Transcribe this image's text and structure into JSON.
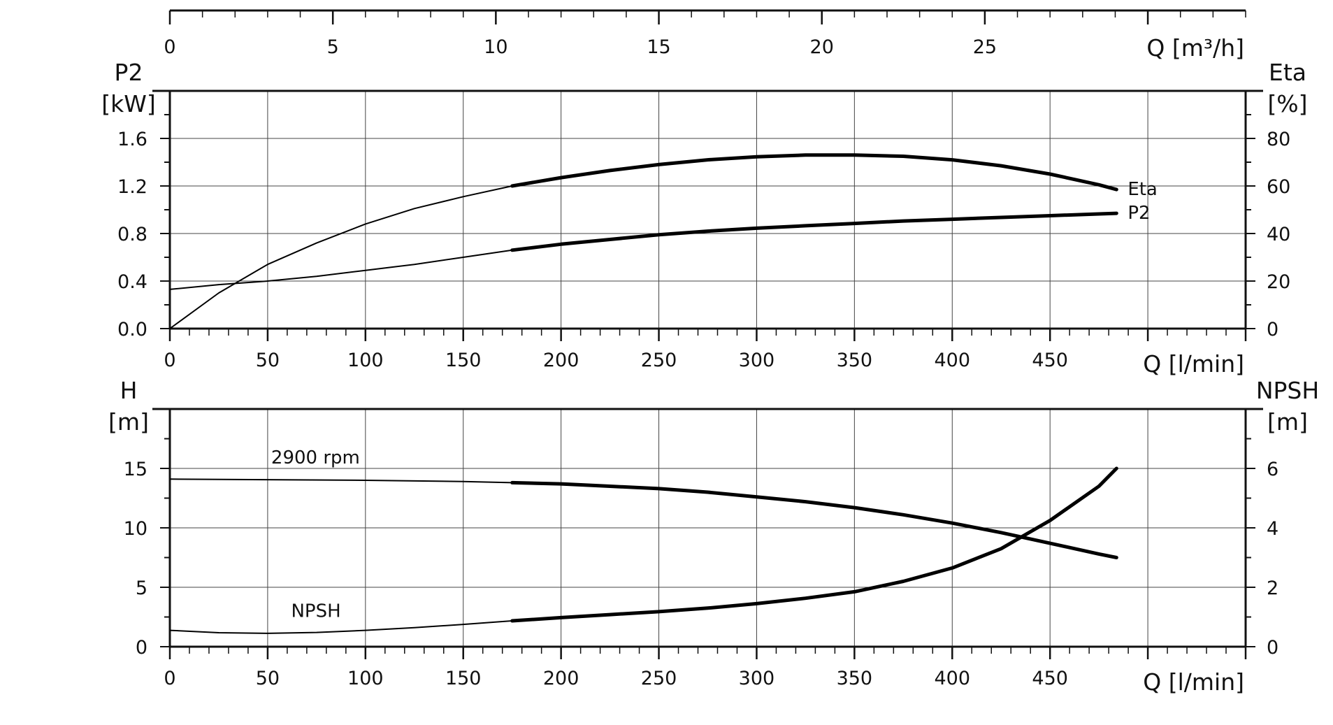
{
  "chart_data": [
    {
      "type": "line",
      "panel": "power-efficiency",
      "x_unit": "l/min",
      "x_ticks": [
        0,
        50,
        100,
        150,
        200,
        250,
        300,
        350,
        400,
        450
      ],
      "x_label": "Q [l/min]",
      "xlim": [
        0,
        550
      ],
      "top_axis": {
        "label": "Q [m³/h]",
        "ticks": [
          0,
          5,
          10,
          15,
          20,
          25
        ],
        "xlim": [
          0,
          33
        ]
      },
      "y_left": {
        "label_line1": "P2",
        "label_line2": "[kW]",
        "ticks": [
          "0.0",
          "0.4",
          "0.8",
          "1.2",
          "1.6"
        ],
        "ylim": [
          0,
          2.0
        ]
      },
      "y_right": {
        "label_line1": "Eta",
        "label_line2": "[%]",
        "ticks": [
          "0",
          "20",
          "40",
          "60",
          "80"
        ],
        "ylim": [
          0,
          100
        ]
      },
      "grid": true,
      "operating_range_start": 175,
      "series": [
        {
          "name": "Eta",
          "axis": "right",
          "points": [
            [
              0,
              0
            ],
            [
              25,
              15
            ],
            [
              50,
              27
            ],
            [
              75,
              36
            ],
            [
              100,
              44
            ],
            [
              125,
              50.5
            ],
            [
              150,
              55.5
            ],
            [
              175,
              60
            ],
            [
              200,
              63.5
            ],
            [
              225,
              66.5
            ],
            [
              250,
              69
            ],
            [
              275,
              71
            ],
            [
              300,
              72.3
            ],
            [
              325,
              73
            ],
            [
              350,
              73
            ],
            [
              375,
              72.5
            ],
            [
              400,
              71
            ],
            [
              425,
              68.5
            ],
            [
              450,
              65
            ],
            [
              475,
              60.5
            ],
            [
              484,
              58.5
            ]
          ]
        },
        {
          "name": "P2",
          "axis": "left",
          "points": [
            [
              0,
              0.33
            ],
            [
              25,
              0.37
            ],
            [
              50,
              0.4
            ],
            [
              75,
              0.44
            ],
            [
              100,
              0.49
            ],
            [
              125,
              0.54
            ],
            [
              150,
              0.6
            ],
            [
              175,
              0.66
            ],
            [
              200,
              0.71
            ],
            [
              225,
              0.75
            ],
            [
              250,
              0.79
            ],
            [
              275,
              0.82
            ],
            [
              300,
              0.845
            ],
            [
              325,
              0.865
            ],
            [
              350,
              0.885
            ],
            [
              375,
              0.905
            ],
            [
              400,
              0.92
            ],
            [
              425,
              0.935
            ],
            [
              450,
              0.95
            ],
            [
              475,
              0.965
            ],
            [
              484,
              0.97
            ]
          ]
        }
      ]
    },
    {
      "type": "line",
      "panel": "head-npsh",
      "x_ticks": [
        0,
        50,
        100,
        150,
        200,
        250,
        300,
        350,
        400,
        450
      ],
      "x_label": "Q [l/min]",
      "xlim": [
        0,
        550
      ],
      "y_left": {
        "label_line1": "H",
        "label_line2": "[m]",
        "ticks": [
          "0",
          "5",
          "10",
          "15"
        ],
        "ylim": [
          0,
          20
        ]
      },
      "y_right": {
        "label_line1": "NPSH",
        "label_line2": "[m]",
        "ticks": [
          "0",
          "2",
          "4",
          "6"
        ],
        "ylim": [
          0,
          8
        ]
      },
      "grid": true,
      "operating_range_start": 175,
      "series": [
        {
          "name": "2900 rpm",
          "axis": "left",
          "points": [
            [
              0,
              14.1
            ],
            [
              50,
              14.05
            ],
            [
              100,
              14
            ],
            [
              150,
              13.9
            ],
            [
              175,
              13.8
            ],
            [
              200,
              13.7
            ],
            [
              225,
              13.5
            ],
            [
              250,
              13.3
            ],
            [
              275,
              13.0
            ],
            [
              300,
              12.6
            ],
            [
              325,
              12.2
            ],
            [
              350,
              11.7
            ],
            [
              375,
              11.1
            ],
            [
              400,
              10.4
            ],
            [
              425,
              9.6
            ],
            [
              450,
              8.7
            ],
            [
              475,
              7.8
            ],
            [
              484,
              7.5
            ]
          ]
        },
        {
          "name": "NPSH",
          "axis": "right",
          "points": [
            [
              0,
              0.55
            ],
            [
              25,
              0.47
            ],
            [
              50,
              0.45
            ],
            [
              75,
              0.48
            ],
            [
              100,
              0.55
            ],
            [
              125,
              0.64
            ],
            [
              150,
              0.75
            ],
            [
              175,
              0.87
            ],
            [
              200,
              0.98
            ],
            [
              225,
              1.08
            ],
            [
              250,
              1.18
            ],
            [
              275,
              1.3
            ],
            [
              300,
              1.45
            ],
            [
              325,
              1.63
            ],
            [
              350,
              1.85
            ],
            [
              375,
              2.2
            ],
            [
              400,
              2.65
            ],
            [
              425,
              3.3
            ],
            [
              450,
              4.25
            ],
            [
              475,
              5.4
            ],
            [
              484,
              6.0
            ]
          ]
        }
      ]
    }
  ]
}
